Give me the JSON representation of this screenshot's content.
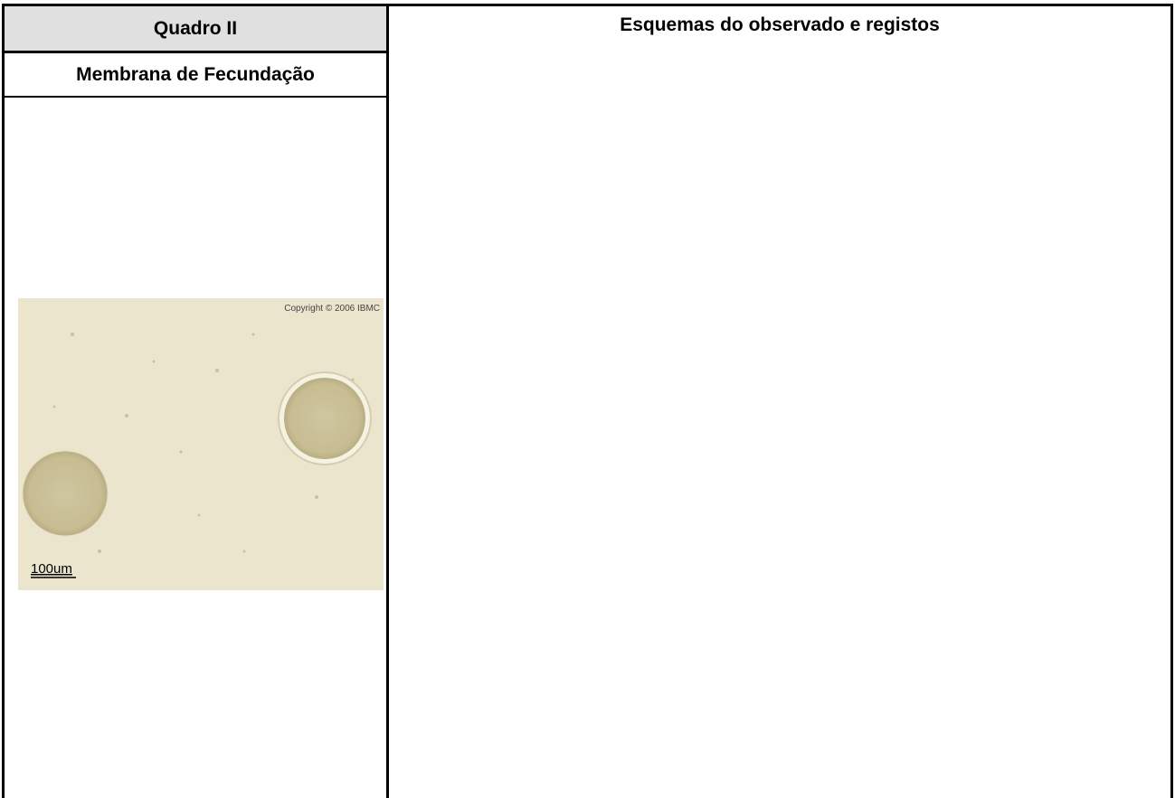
{
  "table": {
    "header": [
      "Quadro II",
      "Esquemas do observado e registos"
    ],
    "rows": [
      [
        "Membrana de Fecundação"
      ]
    ]
  },
  "image": {
    "copyright": "Copyright © 2006 IBMC",
    "scale_label": "100um"
  }
}
